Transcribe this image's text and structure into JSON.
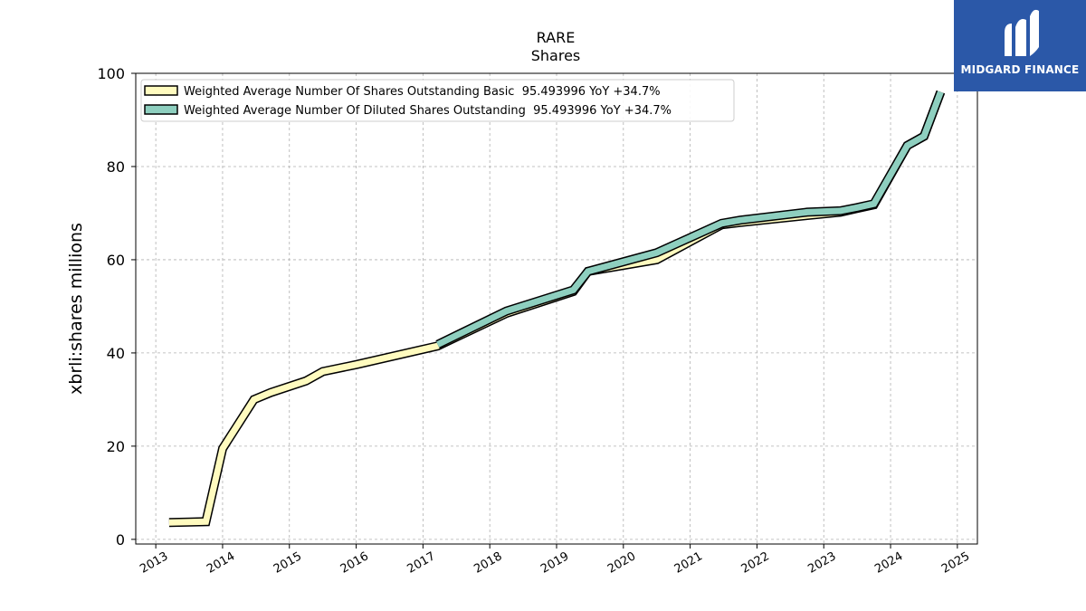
{
  "title": "RARE",
  "subtitle": "Shares",
  "brand": {
    "name": "MIDGARD FINANCE",
    "bg_color": "#2b58a8"
  },
  "colors": {
    "basic": "#fffbbf",
    "diluted": "#8ecfbf",
    "outline": "#000000",
    "grid": "#b0b0b0"
  },
  "chart_data": {
    "type": "line",
    "title": "RARE",
    "subtitle": "Shares",
    "xlabel": "",
    "ylabel": "xbrli:shares millions",
    "xlim": [
      2012.7,
      2025.3
    ],
    "ylim": [
      -1,
      100
    ],
    "x_ticks": [
      "2013",
      "2014",
      "2015",
      "2016",
      "2017",
      "2018",
      "2019",
      "2020",
      "2021",
      "2022",
      "2023",
      "2024",
      "2025"
    ],
    "y_ticks": [
      "0",
      "20",
      "40",
      "60",
      "80",
      "100"
    ],
    "grid": true,
    "legend_position": "top-left",
    "series": [
      {
        "name": "Weighted Average Number Of Shares Outstanding Basic  95.493996 YoY +34.7%",
        "color": "#fffbbf",
        "x": [
          2013.2,
          2013.5,
          2013.75,
          2014.0,
          2014.47,
          2014.72,
          2015.25,
          2015.5,
          2016.0,
          2017.22,
          2018.25,
          2019.25,
          2019.47,
          2020.5,
          2021.47,
          2021.75,
          2022.75,
          2023.25,
          2023.5,
          2023.75,
          2024.25,
          2024.5,
          2024.75
        ],
        "values": [
          3.6,
          3.7,
          3.8,
          19.5,
          30.0,
          31.5,
          34.0,
          36.0,
          37.5,
          41.5,
          48.5,
          53.2,
          57.5,
          60.0,
          67.5,
          68.0,
          69.5,
          70.2,
          71.0,
          71.8,
          84.5,
          86.5,
          96.0
        ]
      },
      {
        "name": "Weighted Average Number Of Diluted Shares Outstanding  95.493996 YoY +34.7%",
        "color": "#8ecfbf",
        "x": [
          2017.22,
          2018.25,
          2019.25,
          2019.47,
          2020.5,
          2021.47,
          2021.75,
          2022.75,
          2023.25,
          2023.5,
          2023.75,
          2024.25,
          2024.5,
          2024.75
        ],
        "values": [
          41.8,
          49.0,
          53.5,
          57.5,
          61.5,
          67.8,
          68.5,
          70.2,
          70.5,
          71.2,
          72.0,
          84.5,
          86.5,
          96.0
        ]
      }
    ]
  }
}
